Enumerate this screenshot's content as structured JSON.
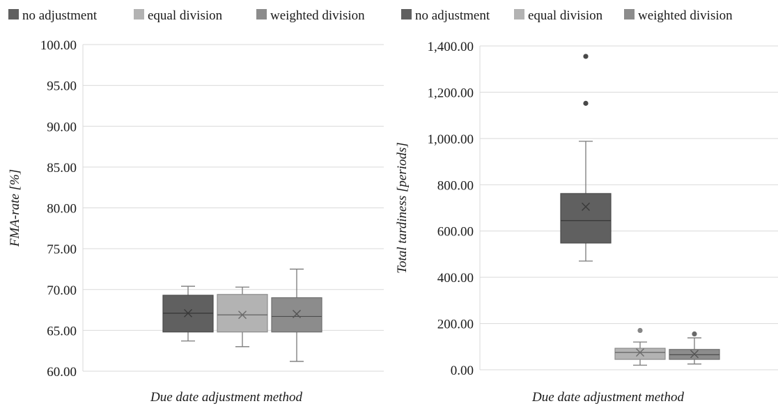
{
  "chart_data": [
    {
      "type": "box",
      "title": "",
      "xlabel": "Due date adjustment method",
      "ylabel": "FMA-rate [%]",
      "ylim": [
        60,
        100
      ],
      "yticks": [
        "60.00",
        "65.00",
        "70.00",
        "75.00",
        "80.00",
        "85.00",
        "90.00",
        "95.00",
        "100.00"
      ],
      "grid": true,
      "legend_position": "top",
      "series": [
        {
          "name": "no adjustment",
          "color": "#606060",
          "min": 63.7,
          "q1": 64.8,
          "median": 67.1,
          "q3": 69.3,
          "max": 70.4,
          "mean": 67.1,
          "outliers": []
        },
        {
          "name": "equal division",
          "color": "#b3b3b3",
          "min": 63.0,
          "q1": 64.8,
          "median": 66.9,
          "q3": 69.4,
          "max": 70.3,
          "mean": 66.9,
          "outliers": []
        },
        {
          "name": "weighted division",
          "color": "#8c8c8c",
          "min": 61.2,
          "q1": 64.8,
          "median": 66.7,
          "q3": 69.0,
          "max": 72.5,
          "mean": 67.0,
          "outliers": []
        }
      ]
    },
    {
      "type": "box",
      "title": "",
      "xlabel": "Due date adjustment method",
      "ylabel": "Total tardiness [periods]",
      "ylim": [
        0,
        1400
      ],
      "yticks": [
        "0.00",
        "200.00",
        "400.00",
        "600.00",
        "800.00",
        "1,000.00",
        "1,200.00",
        "1,400.00"
      ],
      "grid": true,
      "legend_position": "top",
      "series": [
        {
          "name": "no adjustment",
          "color": "#606060",
          "min": 470,
          "q1": 548,
          "median": 645,
          "q3": 762,
          "max": 988,
          "mean": 705,
          "outliers": [
            1152,
            1355
          ]
        },
        {
          "name": "equal division",
          "color": "#b3b3b3",
          "min": 20,
          "q1": 45,
          "median": 75,
          "q3": 93,
          "max": 120,
          "mean": 75,
          "outliers": [
            170
          ]
        },
        {
          "name": "weighted division",
          "color": "#8c8c8c",
          "min": 25,
          "q1": 45,
          "median": 65,
          "q3": 88,
          "max": 138,
          "mean": 68,
          "outliers": [
            155
          ]
        }
      ]
    }
  ]
}
